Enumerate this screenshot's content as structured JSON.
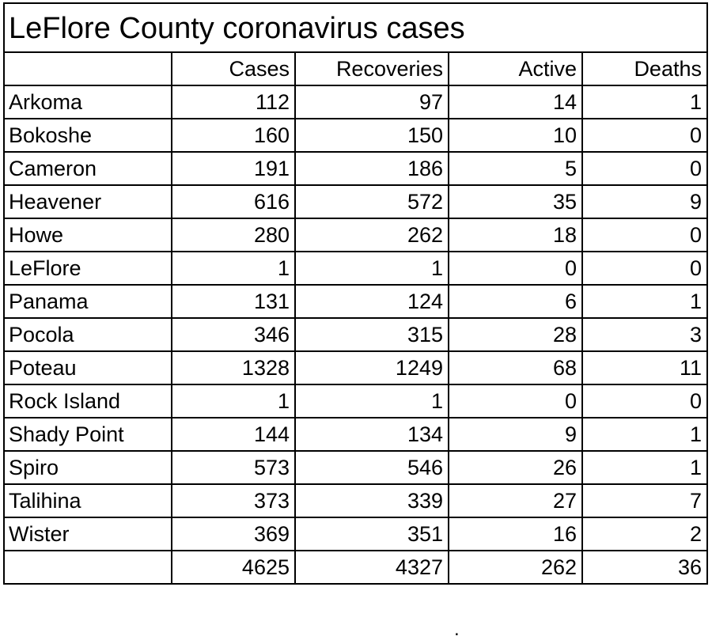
{
  "title": "LeFlore County coronavirus cases",
  "columns": [
    "",
    "Cases",
    "Recoveries",
    "Active",
    "Deaths"
  ],
  "rows": [
    {
      "name": "Arkoma",
      "cases": "112",
      "recoveries": "97",
      "active": "14",
      "deaths": "1"
    },
    {
      "name": "Bokoshe",
      "cases": "160",
      "recoveries": "150",
      "active": "10",
      "deaths": "0"
    },
    {
      "name": "Cameron",
      "cases": "191",
      "recoveries": "186",
      "active": "5",
      "deaths": "0"
    },
    {
      "name": "Heavener",
      "cases": "616",
      "recoveries": "572",
      "active": "35",
      "deaths": "9"
    },
    {
      "name": "Howe",
      "cases": "280",
      "recoveries": "262",
      "active": "18",
      "deaths": "0"
    },
    {
      "name": "LeFlore",
      "cases": "1",
      "recoveries": "1",
      "active": "0",
      "deaths": "0"
    },
    {
      "name": "Panama",
      "cases": "131",
      "recoveries": "124",
      "active": "6",
      "deaths": "1"
    },
    {
      "name": "Pocola",
      "cases": "346",
      "recoveries": "315",
      "active": "28",
      "deaths": "3"
    },
    {
      "name": "Poteau",
      "cases": "1328",
      "recoveries": "1249",
      "active": "68",
      "deaths": "11"
    },
    {
      "name": "Rock Island",
      "cases": "1",
      "recoveries": "1",
      "active": "0",
      "deaths": "0"
    },
    {
      "name": "Shady Point",
      "cases": "144",
      "recoveries": "134",
      "active": "9",
      "deaths": "1"
    },
    {
      "name": "Spiro",
      "cases": "573",
      "recoveries": "546",
      "active": "26",
      "deaths": "1"
    },
    {
      "name": "Talihina",
      "cases": "373",
      "recoveries": "339",
      "active": "27",
      "deaths": "7"
    },
    {
      "name": "Wister",
      "cases": "369",
      "recoveries": "351",
      "active": "16",
      "deaths": "2"
    }
  ],
  "totals": {
    "name": "",
    "cases": "4625",
    "recoveries": "4327",
    "active": "262",
    "deaths": "36"
  },
  "stray_mark": "."
}
